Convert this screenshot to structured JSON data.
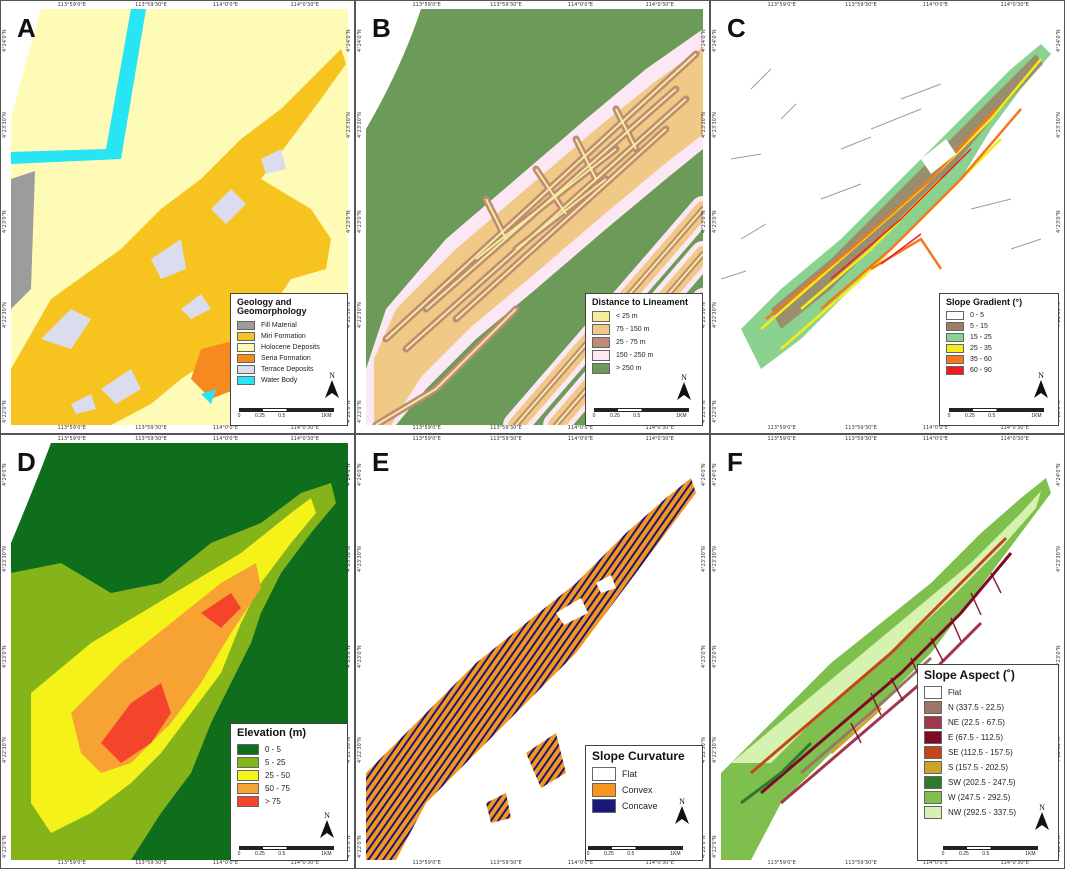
{
  "panels": [
    {
      "letter": "A",
      "legend": {
        "title": "Geology and Geomorphology",
        "items": [
          {
            "label": "Fill Material",
            "color": "#9d9c9c"
          },
          {
            "label": "Miri Formation",
            "color": "#f7c31f"
          },
          {
            "label": "Holocene Deposits",
            "color": "#fdfbb5"
          },
          {
            "label": "Seria Formation",
            "color": "#f58b1e"
          },
          {
            "label": "Terrace Deposits",
            "color": "#dcdcef"
          },
          {
            "label": "Water Body",
            "color": "#27e5f5"
          }
        ]
      }
    },
    {
      "letter": "B",
      "legend": {
        "title": "Distance to Lineament",
        "items": [
          {
            "label": "< 25 m",
            "color": "#f6ed9a"
          },
          {
            "label": "75 - 150 m",
            "color": "#f0c987"
          },
          {
            "label": "25 - 75 m",
            "color": "#be8b76"
          },
          {
            "label": "150 - 250 m",
            "color": "#fbe8f4"
          },
          {
            "label": "> 250 m",
            "color": "#6c9a58"
          }
        ]
      }
    },
    {
      "letter": "C",
      "legend": {
        "title": "Slope Gradient (°)",
        "items": [
          {
            "label": "0 - 5",
            "color": "#ffffff"
          },
          {
            "label": "5 - 15",
            "color": "#9f7d66"
          },
          {
            "label": "15 - 25",
            "color": "#8bd18f"
          },
          {
            "label": "25 - 35",
            "color": "#f3ee18"
          },
          {
            "label": "35 - 60",
            "color": "#f4771d"
          },
          {
            "label": "60 - 90",
            "color": "#ee1c1c"
          }
        ]
      }
    },
    {
      "letter": "D",
      "legend": {
        "title": "Elevation (m)",
        "items": [
          {
            "label": "0 - 5",
            "color": "#0e6e1c"
          },
          {
            "label": "5 - 25",
            "color": "#84b31a"
          },
          {
            "label": "25 - 50",
            "color": "#f5f21a"
          },
          {
            "label": "50 - 75",
            "color": "#f6a334"
          },
          {
            "label": "> 75",
            "color": "#f4442a"
          }
        ]
      }
    },
    {
      "letter": "E",
      "legend": {
        "title": "Slope Curvature",
        "items": [
          {
            "label": "Flat",
            "color": "#ffffff"
          },
          {
            "label": "Convex",
            "color": "#f5961e"
          },
          {
            "label": "Concave",
            "color": "#1a1878"
          }
        ]
      }
    },
    {
      "letter": "F",
      "legend": {
        "title": "Slope Aspect (˚)",
        "items": [
          {
            "label": "Flat",
            "color": "#ffffff"
          },
          {
            "label": "N (337.5 - 22.5)",
            "color": "#9a7764"
          },
          {
            "label": "NE (22.5 - 67.5)",
            "color": "#a2374c"
          },
          {
            "label": "E (67.5 - 112.5)",
            "color": "#7f0a24"
          },
          {
            "label": "SE (112.5 - 157.5)",
            "color": "#c6461b"
          },
          {
            "label": "S (157.5 - 202.5)",
            "color": "#c9a52a"
          },
          {
            "label": "SW (202.5 - 247.5)",
            "color": "#2d7b2a"
          },
          {
            "label": "W (247.5 - 292.5)",
            "color": "#7fbf4d"
          },
          {
            "label": "NW (292.5 - 337.5)",
            "color": "#d6f2b0"
          }
        ]
      }
    }
  ],
  "north_label": "N",
  "scale": [
    "0",
    "0.25",
    "0.5",
    "1KM"
  ],
  "lon_ticks": [
    "113°59'0\"E",
    "113°59'30\"E",
    "114°0'0\"E",
    "114°0'30\"E"
  ],
  "lat_ticks": [
    "4°24'0\"N",
    "4°23'30\"N",
    "4°23'0\"N",
    "4°22'30\"N",
    "4°22'0\"N"
  ]
}
